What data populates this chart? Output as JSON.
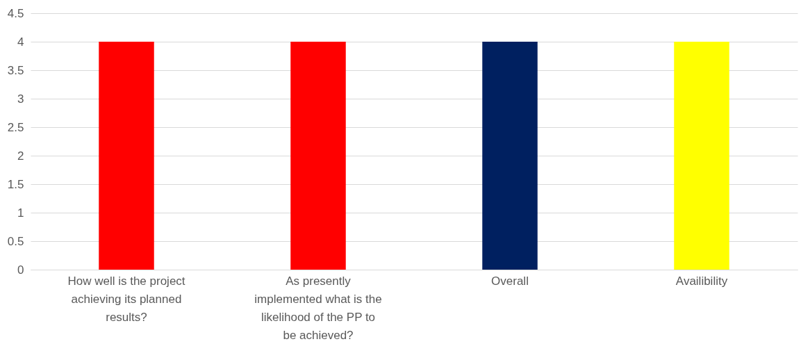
{
  "chart_data": {
    "type": "bar",
    "categories": [
      "How well is the project achieving its planned results?",
      "As presently implemented what is the likelihood of the PP to be achieved?",
      "Overall",
      "Availibility"
    ],
    "values": [
      4,
      4,
      4,
      4
    ],
    "colors": [
      "#ff0000",
      "#ff0000",
      "#002060",
      "#ffff00"
    ],
    "ylim": [
      0,
      4.5
    ],
    "yticks": [
      0,
      0.5,
      1,
      1.5,
      2,
      2.5,
      3,
      3.5,
      4,
      4.5
    ],
    "grid": "y"
  }
}
